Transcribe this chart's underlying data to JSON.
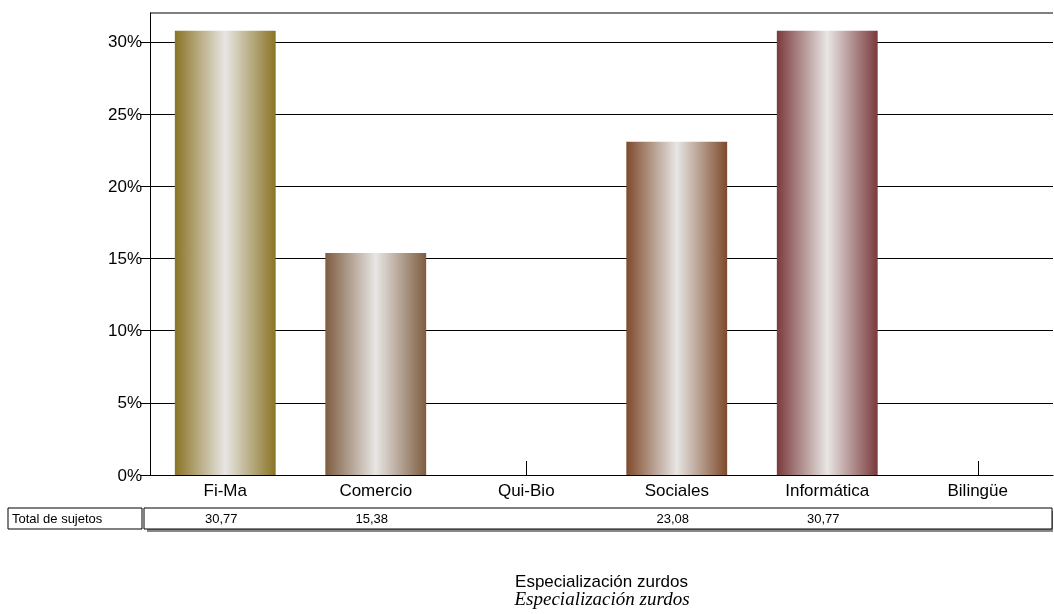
{
  "chart_data": {
    "type": "bar",
    "xlabel": "Especialización zurdos",
    "categories": [
      "Fi-Ma",
      "Comercio",
      "Qui-Bio",
      "Sociales",
      "Informática",
      "Bilingüe"
    ],
    "series": [
      {
        "name": "Total de sujetos",
        "values": [
          30.77,
          15.38,
          null,
          23.08,
          30.77,
          null
        ],
        "colors": [
          "#8a7424",
          "#7e5d40",
          "#7e5d40",
          "#7e4a2c",
          "#7a3a3c",
          "#7a3a3c"
        ],
        "value_labels": [
          "30,77",
          "15,38",
          null,
          "23,08",
          "30,77",
          null
        ]
      }
    ],
    "ylim": [
      0,
      32
    ],
    "yticks": [
      {
        "value": 0,
        "label": "0%"
      },
      {
        "value": 5,
        "label": "5%"
      },
      {
        "value": 10,
        "label": "10%"
      },
      {
        "value": 15,
        "label": "15%"
      },
      {
        "value": 20,
        "label": "20%"
      },
      {
        "value": 25,
        "label": "25%"
      },
      {
        "value": 30,
        "label": "30%"
      }
    ],
    "grid": "y",
    "legend": false,
    "annotations": [
      "Especialización zurdos"
    ]
  }
}
